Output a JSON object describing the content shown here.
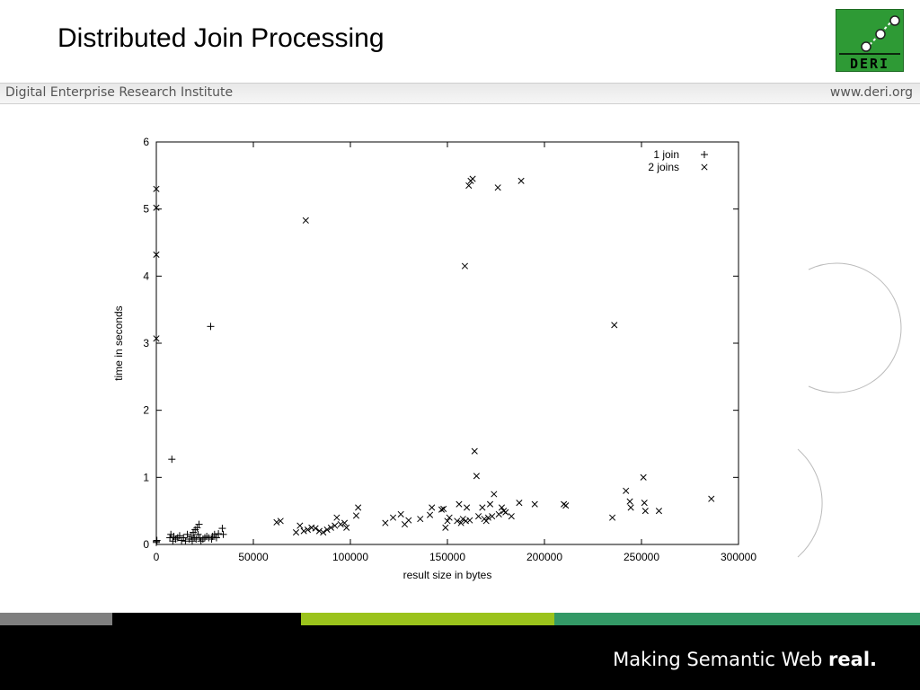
{
  "slide": {
    "title": "Distributed Join Processing",
    "institute": "Digital Enterprise Research Institute",
    "url": "www.deri.org",
    "logo_text": "DERI",
    "slogan_normal": "Making Semantic Web ",
    "slogan_bold": "real."
  },
  "colors": {
    "logo_green": "#2e9a35",
    "stripe_gray": "#7f7f7f",
    "stripe_black": "#000000",
    "stripe_lime": "#9bc31c",
    "stripe_green": "#339966",
    "footer": "#000000"
  },
  "chart_data": {
    "type": "scatter",
    "xlabel": "result size in bytes",
    "ylabel": "time in seconds",
    "xlim": [
      0,
      300000
    ],
    "ylim": [
      0,
      6
    ],
    "xticks": [
      0,
      50000,
      100000,
      150000,
      200000,
      250000,
      300000
    ],
    "yticks": [
      0,
      1,
      2,
      3,
      4,
      5,
      6
    ],
    "legend_position": "top-right",
    "series": [
      {
        "name": "1 join",
        "marker": "+",
        "points": [
          [
            0,
            0.05
          ],
          [
            0,
            0.03
          ],
          [
            300,
            0.06
          ],
          [
            8000,
            1.27
          ],
          [
            28000,
            3.25
          ],
          [
            7000,
            0.1
          ],
          [
            7500,
            0.15
          ],
          [
            8500,
            0.05
          ],
          [
            9000,
            0.12
          ],
          [
            10000,
            0.08
          ],
          [
            11000,
            0.1
          ],
          [
            12000,
            0.13
          ],
          [
            13000,
            0.06
          ],
          [
            14000,
            0.1
          ],
          [
            15000,
            0.05
          ],
          [
            16000,
            0.15
          ],
          [
            17000,
            0.08
          ],
          [
            18000,
            0.12
          ],
          [
            18500,
            0.05
          ],
          [
            19000,
            0.18
          ],
          [
            19500,
            0.1
          ],
          [
            20000,
            0.22
          ],
          [
            20500,
            0.08
          ],
          [
            21000,
            0.25
          ],
          [
            21500,
            0.15
          ],
          [
            22000,
            0.3
          ],
          [
            22500,
            0.1
          ],
          [
            23000,
            0.05
          ],
          [
            24000,
            0.08
          ],
          [
            25000,
            0.1
          ],
          [
            26000,
            0.12
          ],
          [
            27000,
            0.1
          ],
          [
            28500,
            0.08
          ],
          [
            29000,
            0.12
          ],
          [
            30000,
            0.15
          ],
          [
            31000,
            0.1
          ],
          [
            32000,
            0.16
          ],
          [
            34000,
            0.24
          ],
          [
            34500,
            0.15
          ]
        ]
      },
      {
        "name": "2 joins",
        "marker": "x",
        "points": [
          [
            0,
            5.3
          ],
          [
            0,
            5.02
          ],
          [
            0,
            4.32
          ],
          [
            0,
            3.07
          ],
          [
            77000,
            4.83
          ],
          [
            161000,
            5.35
          ],
          [
            162000,
            5.42
          ],
          [
            163000,
            5.45
          ],
          [
            176000,
            5.32
          ],
          [
            188000,
            5.42
          ],
          [
            159000,
            4.15
          ],
          [
            236000,
            3.27
          ],
          [
            164000,
            1.39
          ],
          [
            165000,
            1.02
          ],
          [
            251000,
            1.0
          ],
          [
            242000,
            0.8
          ],
          [
            286000,
            0.68
          ],
          [
            174000,
            0.75
          ],
          [
            62000,
            0.33
          ],
          [
            64000,
            0.35
          ],
          [
            72000,
            0.18
          ],
          [
            74000,
            0.28
          ],
          [
            76000,
            0.2
          ],
          [
            78000,
            0.22
          ],
          [
            80000,
            0.25
          ],
          [
            82000,
            0.24
          ],
          [
            84000,
            0.2
          ],
          [
            86000,
            0.18
          ],
          [
            88000,
            0.22
          ],
          [
            90000,
            0.25
          ],
          [
            92000,
            0.28
          ],
          [
            93000,
            0.4
          ],
          [
            95000,
            0.3
          ],
          [
            97000,
            0.32
          ],
          [
            98000,
            0.25
          ],
          [
            103000,
            0.43
          ],
          [
            104000,
            0.55
          ],
          [
            118000,
            0.32
          ],
          [
            122000,
            0.4
          ],
          [
            126000,
            0.45
          ],
          [
            128000,
            0.3
          ],
          [
            130000,
            0.36
          ],
          [
            136000,
            0.38
          ],
          [
            141000,
            0.44
          ],
          [
            142000,
            0.55
          ],
          [
            147000,
            0.52
          ],
          [
            148000,
            0.53
          ],
          [
            149000,
            0.25
          ],
          [
            150000,
            0.35
          ],
          [
            151000,
            0.4
          ],
          [
            155000,
            0.35
          ],
          [
            156000,
            0.6
          ],
          [
            157000,
            0.32
          ],
          [
            158000,
            0.38
          ],
          [
            159500,
            0.35
          ],
          [
            160000,
            0.55
          ],
          [
            161500,
            0.36
          ],
          [
            166000,
            0.42
          ],
          [
            168000,
            0.55
          ],
          [
            169000,
            0.38
          ],
          [
            170000,
            0.35
          ],
          [
            171000,
            0.4
          ],
          [
            172000,
            0.6
          ],
          [
            173000,
            0.42
          ],
          [
            176500,
            0.45
          ],
          [
            178000,
            0.55
          ],
          [
            179000,
            0.5
          ],
          [
            180000,
            0.48
          ],
          [
            183000,
            0.42
          ],
          [
            187000,
            0.62
          ],
          [
            195000,
            0.6
          ],
          [
            210000,
            0.6
          ],
          [
            211000,
            0.58
          ],
          [
            235000,
            0.4
          ],
          [
            244000,
            0.64
          ],
          [
            244500,
            0.55
          ],
          [
            251500,
            0.62
          ],
          [
            252000,
            0.5
          ],
          [
            259000,
            0.5
          ]
        ]
      }
    ]
  }
}
